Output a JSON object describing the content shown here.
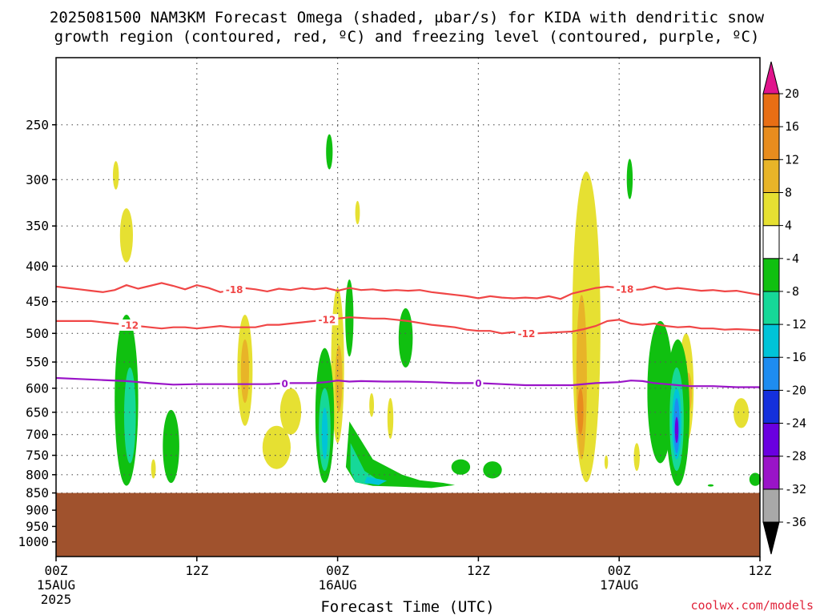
{
  "title_line1": "2025081500 NAM3KM Forecast Omega (shaded, μbar/s) for KIDA with dendritic snow",
  "title_line2": "growth region (contoured, red, ºC) and freezing level (contoured, purple, ºC)",
  "credit": "coolwx.com/models",
  "chart_data": {
    "type": "heatmap",
    "title": "2025081500 NAM3KM Forecast Omega (shaded, μbar/s) for KIDA with dendritic snow growth region (contoured, red, ºC) and freezing level (contoured, purple, ºC)",
    "xlabel": "Forecast Time (UTC)",
    "ylabel": "",
    "x_axis": {
      "unit": "forecast hour",
      "range": [
        0,
        60
      ],
      "ticks": [
        {
          "hour": 0,
          "label": "00Z",
          "sub1": "15AUG",
          "sub2": "2025"
        },
        {
          "hour": 12,
          "label": "12Z",
          "sub1": "",
          "sub2": ""
        },
        {
          "hour": 24,
          "label": "00Z",
          "sub1": "16AUG",
          "sub2": ""
        },
        {
          "hour": 36,
          "label": "12Z",
          "sub1": "",
          "sub2": ""
        },
        {
          "hour": 48,
          "label": "00Z",
          "sub1": "17AUG",
          "sub2": ""
        },
        {
          "hour": 60,
          "label": "12Z",
          "sub1": "",
          "sub2": ""
        }
      ]
    },
    "y_axis": {
      "unit": "hPa",
      "log_scale": true,
      "inverted": true,
      "range": [
        1050,
        200
      ],
      "ticks": [
        250,
        300,
        350,
        400,
        450,
        500,
        550,
        600,
        650,
        700,
        750,
        800,
        850,
        900,
        950,
        1000
      ]
    },
    "grid": true,
    "ground_surface_hPa": 850,
    "colorbar": {
      "unit": "μbar/s",
      "levels": [
        -36,
        -32,
        -28,
        -24,
        -20,
        -16,
        -12,
        -8,
        -4,
        4,
        8,
        12,
        16,
        20
      ],
      "colors": [
        "#000000",
        "#a8a8a8",
        "#9a14c8",
        "#6a00e0",
        "#1430dc",
        "#1e8cf0",
        "#00c4d8",
        "#16d898",
        "#10c010",
        "#ffffff",
        "#e6e032",
        "#e8b428",
        "#e88c1e",
        "#e86e14",
        "#f03a3a",
        "#e0148c"
      ]
    },
    "contours": [
      {
        "name": "-18",
        "color": "#f04646",
        "labels": [
          {
            "hour": 15.2,
            "text": "-18"
          },
          {
            "hour": 48.5,
            "text": "-18"
          }
        ],
        "points": [
          [
            0,
            428
          ],
          [
            1,
            430
          ],
          [
            2,
            432
          ],
          [
            3,
            434
          ],
          [
            4,
            436
          ],
          [
            5,
            433
          ],
          [
            6,
            426
          ],
          [
            7,
            431
          ],
          [
            8,
            427
          ],
          [
            9,
            423
          ],
          [
            10,
            427
          ],
          [
            11,
            432
          ],
          [
            12,
            426
          ],
          [
            13,
            430
          ],
          [
            14,
            436
          ],
          [
            15,
            433
          ],
          [
            16,
            430
          ],
          [
            17,
            432
          ],
          [
            18,
            435
          ],
          [
            19,
            431
          ],
          [
            20,
            433
          ],
          [
            21,
            430
          ],
          [
            22,
            432
          ],
          [
            23,
            430
          ],
          [
            24,
            434
          ],
          [
            25,
            430
          ],
          [
            26,
            433
          ],
          [
            27,
            432
          ],
          [
            28,
            434
          ],
          [
            29,
            433
          ],
          [
            30,
            434
          ],
          [
            31,
            433
          ],
          [
            32,
            436
          ],
          [
            33,
            438
          ],
          [
            34,
            440
          ],
          [
            35,
            442
          ],
          [
            36,
            445
          ],
          [
            37,
            442
          ],
          [
            38,
            444
          ],
          [
            39,
            445
          ],
          [
            40,
            444
          ],
          [
            41,
            445
          ],
          [
            42,
            442
          ],
          [
            43,
            446
          ],
          [
            44,
            438
          ],
          [
            45,
            434
          ],
          [
            46,
            430
          ],
          [
            47,
            428
          ],
          [
            48,
            430
          ],
          [
            49,
            433
          ],
          [
            50,
            432
          ],
          [
            51,
            428
          ],
          [
            52,
            432
          ],
          [
            53,
            430
          ],
          [
            54,
            432
          ],
          [
            55,
            434
          ],
          [
            56,
            433
          ],
          [
            57,
            435
          ],
          [
            58,
            434
          ],
          [
            59,
            437
          ],
          [
            60,
            440
          ]
        ]
      },
      {
        "name": "-12",
        "color": "#f04646",
        "labels": [
          {
            "hour": 6.3,
            "text": "-12"
          },
          {
            "hour": 23.1,
            "text": "-12"
          },
          {
            "hour": 40.1,
            "text": "-12"
          }
        ],
        "points": [
          [
            0,
            480
          ],
          [
            1,
            480
          ],
          [
            2,
            480
          ],
          [
            3,
            480
          ],
          [
            4,
            482
          ],
          [
            5,
            484
          ],
          [
            6,
            486
          ],
          [
            7,
            488
          ],
          [
            8,
            490
          ],
          [
            9,
            492
          ],
          [
            10,
            490
          ],
          [
            11,
            490
          ],
          [
            12,
            492
          ],
          [
            13,
            490
          ],
          [
            14,
            488
          ],
          [
            15,
            490
          ],
          [
            16,
            490
          ],
          [
            17,
            490
          ],
          [
            18,
            486
          ],
          [
            19,
            486
          ],
          [
            20,
            484
          ],
          [
            21,
            482
          ],
          [
            22,
            480
          ],
          [
            23,
            478
          ],
          [
            24,
            476
          ],
          [
            25,
            474
          ],
          [
            26,
            475
          ],
          [
            27,
            476
          ],
          [
            28,
            476
          ],
          [
            29,
            478
          ],
          [
            30,
            480
          ],
          [
            31,
            483
          ],
          [
            32,
            486
          ],
          [
            33,
            488
          ],
          [
            34,
            490
          ],
          [
            35,
            494
          ],
          [
            36,
            496
          ],
          [
            37,
            496
          ],
          [
            38,
            500
          ],
          [
            39,
            498
          ],
          [
            40,
            500
          ],
          [
            41,
            500
          ],
          [
            42,
            499
          ],
          [
            43,
            498
          ],
          [
            44,
            497
          ],
          [
            45,
            493
          ],
          [
            46,
            488
          ],
          [
            47,
            480
          ],
          [
            48,
            478
          ],
          [
            49,
            484
          ],
          [
            50,
            486
          ],
          [
            51,
            484
          ],
          [
            52,
            488
          ],
          [
            53,
            490
          ],
          [
            54,
            489
          ],
          [
            55,
            492
          ],
          [
            56,
            492
          ],
          [
            57,
            494
          ],
          [
            58,
            493
          ],
          [
            59,
            494
          ],
          [
            60,
            495
          ]
        ]
      },
      {
        "name": "0",
        "color": "#9a14c8",
        "labels": [
          {
            "hour": 19.5,
            "text": "0"
          },
          {
            "hour": 36.0,
            "text": "0"
          }
        ],
        "points": [
          [
            0,
            580
          ],
          [
            2,
            582
          ],
          [
            4,
            584
          ],
          [
            6,
            586
          ],
          [
            8,
            590
          ],
          [
            10,
            593
          ],
          [
            12,
            592
          ],
          [
            14,
            592
          ],
          [
            16,
            592
          ],
          [
            18,
            592
          ],
          [
            20,
            590
          ],
          [
            22,
            590
          ],
          [
            23,
            588
          ],
          [
            24,
            585
          ],
          [
            25,
            587
          ],
          [
            26,
            586
          ],
          [
            28,
            587
          ],
          [
            30,
            587
          ],
          [
            32,
            588
          ],
          [
            34,
            590
          ],
          [
            36,
            590
          ],
          [
            38,
            592
          ],
          [
            40,
            594
          ],
          [
            42,
            594
          ],
          [
            44,
            594
          ],
          [
            46,
            590
          ],
          [
            48,
            588
          ],
          [
            49,
            585
          ],
          [
            50,
            586
          ],
          [
            51,
            590
          ],
          [
            52,
            592
          ],
          [
            53,
            594
          ],
          [
            54,
            596
          ],
          [
            56,
            596
          ],
          [
            58,
            598
          ],
          [
            60,
            598
          ]
        ]
      }
    ],
    "omega_regions": [
      {
        "value": 5,
        "hour": 5.1,
        "p_top": 282,
        "p_bot": 310,
        "hw": 0.25
      },
      {
        "value": 5,
        "hour": 6.0,
        "p_top": 330,
        "p_bot": 395,
        "hw": 0.55
      },
      {
        "value": 5,
        "hour": 25.7,
        "p_top": 322,
        "p_bot": 348,
        "hw": 0.2
      },
      {
        "value": 5,
        "hour": 45.2,
        "p_top": 292,
        "p_bot": 820,
        "hw": 1.2
      },
      {
        "value": 9,
        "hour": 44.8,
        "p_top": 440,
        "p_bot": 760,
        "hw": 0.45
      },
      {
        "value": 13,
        "hour": 44.7,
        "p_top": 600,
        "p_bot": 700,
        "hw": 0.25
      },
      {
        "value": 5,
        "hour": 16.1,
        "p_top": 470,
        "p_bot": 680,
        "hw": 0.65
      },
      {
        "value": 9,
        "hour": 16.1,
        "p_top": 510,
        "p_bot": 630,
        "hw": 0.35
      },
      {
        "value": 5,
        "hour": 20.0,
        "p_top": 600,
        "p_bot": 700,
        "hw": 0.9
      },
      {
        "value": 5,
        "hour": 18.8,
        "p_top": 680,
        "p_bot": 785,
        "hw": 1.2
      },
      {
        "value": 5,
        "hour": 8.3,
        "p_top": 760,
        "p_bot": 810,
        "hw": 0.2
      },
      {
        "value": 5,
        "hour": 24.0,
        "p_top": 430,
        "p_bot": 720,
        "hw": 0.55
      },
      {
        "value": 9,
        "hour": 24.1,
        "p_top": 520,
        "p_bot": 650,
        "hw": 0.3
      },
      {
        "value": 5,
        "hour": 26.9,
        "p_top": 610,
        "p_bot": 660,
        "hw": 0.2
      },
      {
        "value": 5,
        "hour": 28.5,
        "p_top": 620,
        "p_bot": 710,
        "hw": 0.25
      },
      {
        "value": 5,
        "hour": 51.3,
        "p_top": 535,
        "p_bot": 690,
        "hw": 0.6
      },
      {
        "value": 5,
        "hour": 53.7,
        "p_top": 500,
        "p_bot": 720,
        "hw": 0.65
      },
      {
        "value": 9,
        "hour": 53.9,
        "p_top": 570,
        "p_bot": 650,
        "hw": 0.3
      },
      {
        "value": 5,
        "hour": 49.5,
        "p_top": 720,
        "p_bot": 790,
        "hw": 0.25
      },
      {
        "value": 5,
        "hour": 58.4,
        "p_top": 620,
        "p_bot": 685,
        "hw": 0.65
      },
      {
        "value": 5,
        "hour": 46.9,
        "p_top": 750,
        "p_bot": 785,
        "hw": 0.15
      },
      {
        "value": -6,
        "hour": 23.3,
        "p_top": 258,
        "p_bot": 290,
        "hw": 0.28
      },
      {
        "value": -6,
        "hour": 48.9,
        "p_top": 280,
        "p_bot": 320,
        "hw": 0.25
      },
      {
        "value": -6,
        "hour": 6.0,
        "p_top": 470,
        "p_bot": 830,
        "hw": 1.0
      },
      {
        "value": -10,
        "hour": 6.3,
        "p_top": 560,
        "p_bot": 770,
        "hw": 0.5
      },
      {
        "value": -6,
        "hour": 9.8,
        "p_top": 645,
        "p_bot": 822,
        "hw": 0.7
      },
      {
        "value": -6,
        "hour": 22.9,
        "p_top": 525,
        "p_bot": 822,
        "hw": 0.8
      },
      {
        "value": -10,
        "hour": 22.9,
        "p_top": 600,
        "p_bot": 790,
        "hw": 0.5
      },
      {
        "value": -14,
        "hour": 22.9,
        "p_top": 640,
        "p_bot": 760,
        "hw": 0.25
      },
      {
        "value": -6,
        "hour": 25.0,
        "p_top": 418,
        "p_bot": 540,
        "hw": 0.35
      },
      {
        "value": -6,
        "hour": 29.8,
        "p_top": 460,
        "p_bot": 560,
        "hw": 0.6
      },
      {
        "value": -6,
        "hour": 51.5,
        "p_top": 480,
        "p_bot": 770,
        "hw": 1.1
      },
      {
        "value": -6,
        "hour": 53.0,
        "p_top": 510,
        "p_bot": 830,
        "hw": 1.0
      },
      {
        "value": -10,
        "hour": 52.9,
        "p_top": 560,
        "p_bot": 790,
        "hw": 0.6
      },
      {
        "value": -14,
        "hour": 52.9,
        "p_top": 600,
        "p_bot": 760,
        "hw": 0.4
      },
      {
        "value": -20,
        "hour": 52.9,
        "p_top": 620,
        "p_bot": 745,
        "hw": 0.25
      },
      {
        "value": -26,
        "hour": 52.9,
        "p_top": 660,
        "p_bot": 720,
        "hw": 0.15
      },
      {
        "value": -6,
        "hour": 59.6,
        "p_top": 795,
        "p_bot": 830,
        "hw": 0.5
      },
      {
        "value": -6,
        "hour": 55.8,
        "p_top": 826,
        "p_bot": 832,
        "hw": 0.25
      },
      {
        "value": -6,
        "hour": 37.2,
        "p_top": 765,
        "p_bot": 810,
        "hw": 0.8
      },
      {
        "value": -6,
        "hour": 34.5,
        "p_top": 760,
        "p_bot": 800,
        "hw": 0.8
      }
    ],
    "omega_polygons": [
      {
        "value": -6,
        "points": [
          [
            25.0,
            670
          ],
          [
            27.0,
            760
          ],
          [
            29.5,
            800
          ],
          [
            31.0,
            815
          ],
          [
            33.0,
            822
          ],
          [
            34.0,
            828
          ],
          [
            32.0,
            836
          ],
          [
            29.0,
            832
          ],
          [
            27.0,
            830
          ],
          [
            25.5,
            820
          ],
          [
            24.7,
            780
          ]
        ]
      },
      {
        "value": -10,
        "points": [
          [
            25.1,
            720
          ],
          [
            26.3,
            790
          ],
          [
            27.5,
            815
          ],
          [
            26.5,
            826
          ],
          [
            25.5,
            820
          ],
          [
            25.1,
            790
          ]
        ]
      },
      {
        "value": -14,
        "points": [
          [
            26.5,
            805
          ],
          [
            28.2,
            816
          ],
          [
            27.5,
            828
          ],
          [
            26.3,
            822
          ]
        ]
      }
    ]
  }
}
